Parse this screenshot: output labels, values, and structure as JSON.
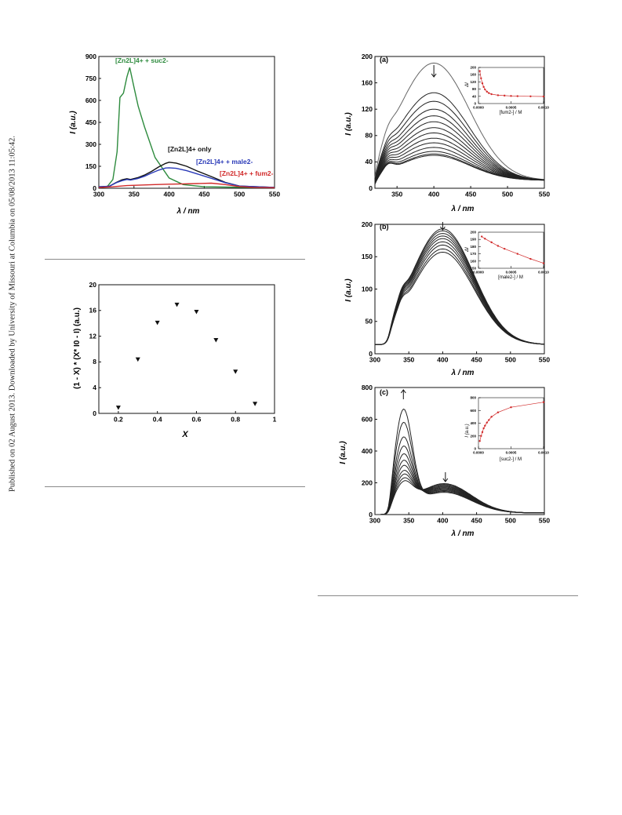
{
  "page": {
    "side_note": "Published on 02 August 2013. Downloaded by University of Missouri at Columbia on 05/08/2013 11:05:42."
  },
  "figures": {
    "fig1": {
      "ylabel": "I (a.u.)",
      "xlabel": "λ / nm",
      "labels": {
        "suc": "[Zn2L]4+ + suc2-",
        "only": "[Zn2L]4+ only",
        "male": "[Zn2L]4+ + male2-",
        "fum": "[Zn2L]4+ + fum2-"
      }
    },
    "fig2": {
      "ylabel": "(1 - X) * (X* I0 - I) (a.u.)",
      "xlabel": "X"
    },
    "panel_a": {
      "label": "(a)",
      "ylabel": "I (a.u.)",
      "xlabel": "λ / nm",
      "inset_ylabel": "ΔI",
      "inset_xlabel": "[fum2-] / M"
    },
    "panel_b": {
      "label": "(b)",
      "ylabel": "I (a.u.)",
      "xlabel": "λ / nm",
      "inset_ylabel": "ΔI",
      "inset_xlabel": "[male2-] / M"
    },
    "panel_c": {
      "label": "(c)",
      "ylabel": "I (a.u.)",
      "xlabel": "λ / nm",
      "inset_ylabel": "I (a.u.)",
      "inset_xlabel": "[suc2-] / M"
    }
  },
  "chart_data": [
    {
      "type": "line",
      "xlabel": "λ / nm",
      "ylabel": "I (a.u.)",
      "xlim": [
        300,
        550
      ],
      "ylim": [
        0,
        900
      ],
      "xticks": [
        300,
        350,
        400,
        450,
        500,
        550
      ],
      "yticks": [
        0,
        150,
        300,
        450,
        600,
        750,
        900
      ],
      "series": [
        {
          "name": "[Zn2L]4+ + suc2-",
          "color": "#2e8b3e",
          "x": [
            300,
            312,
            320,
            326,
            330,
            335,
            340,
            344,
            350,
            356,
            365,
            380,
            400,
            420,
            450,
            480,
            520,
            550
          ],
          "y": [
            8,
            12,
            60,
            250,
            620,
            650,
            760,
            825,
            690,
            560,
            420,
            210,
            70,
            25,
            10,
            8,
            5,
            5
          ]
        },
        {
          "name": "[Zn2L]4+ only",
          "color": "#111111",
          "x": [
            300,
            315,
            325,
            333,
            340,
            345,
            355,
            365,
            375,
            385,
            395,
            400,
            410,
            425,
            440,
            460,
            480,
            500,
            550
          ],
          "y": [
            10,
            14,
            40,
            58,
            65,
            60,
            72,
            90,
            115,
            145,
            170,
            178,
            172,
            150,
            118,
            80,
            40,
            15,
            6
          ]
        },
        {
          "name": "[Zn2L]4+ + male2-",
          "color": "#2a3ab8",
          "x": [
            300,
            315,
            325,
            333,
            340,
            345,
            355,
            365,
            375,
            385,
            395,
            400,
            410,
            425,
            440,
            460,
            480,
            500,
            550
          ],
          "y": [
            10,
            14,
            38,
            52,
            60,
            56,
            66,
            82,
            104,
            124,
            138,
            140,
            136,
            120,
            98,
            68,
            38,
            15,
            6
          ]
        },
        {
          "name": "[Zn2L]4+ + fum2-",
          "color": "#d12a2a",
          "x": [
            300,
            320,
            340,
            360,
            380,
            400,
            420,
            440,
            460,
            480,
            500,
            520,
            550
          ],
          "y": [
            5,
            10,
            18,
            22,
            25,
            28,
            30,
            32,
            35,
            25,
            12,
            6,
            4
          ]
        }
      ]
    },
    {
      "type": "scatter",
      "xlabel": "X",
      "ylabel": "(1 - X) * (X* I0 - I) (a.u.)",
      "xlim": [
        0.1,
        1.0
      ],
      "ylim": [
        0,
        20
      ],
      "xticks": [
        0.2,
        0.4,
        0.6,
        0.8,
        1.0
      ],
      "yticks": [
        0,
        4,
        8,
        12,
        16,
        20
      ],
      "x": [
        0.2,
        0.3,
        0.4,
        0.5,
        0.6,
        0.7,
        0.8,
        0.9
      ],
      "y": [
        0.9,
        8.4,
        14.1,
        16.9,
        15.8,
        11.4,
        6.5,
        1.5
      ]
    },
    {
      "type": "line",
      "label": "(a)",
      "xlabel": "λ / nm",
      "ylabel": "I (a.u.)",
      "xlim": [
        320,
        550
      ],
      "ylim": [
        0,
        200
      ],
      "xticks": [
        350,
        400,
        450,
        500,
        550
      ],
      "yticks": [
        0,
        40,
        80,
        120,
        160,
        200
      ],
      "curve_peaks": [
        178,
        133,
        120,
        108,
        98,
        89,
        80,
        72,
        64,
        57,
        50,
        44,
        40,
        38
      ],
      "inset": {
        "type": "line",
        "xlabel": "[fum2-] / M",
        "ylabel": "ΔI",
        "xlim": [
          0,
          0.001
        ],
        "ylim": [
          0,
          200
        ],
        "xticks": [
          0.0,
          0.0005,
          0.001
        ],
        "xticklabels": [
          "0.0000",
          "0.0005",
          "0.0010"
        ],
        "yticks": [
          0,
          40,
          80,
          120,
          160,
          200
        ],
        "x": [
          2e-05,
          4e-05,
          6e-05,
          8e-05,
          0.0001,
          0.00013,
          0.00016,
          0.0002,
          0.0003,
          0.0004,
          0.0005,
          0.0006,
          0.0008,
          0.001
        ],
        "y": [
          180,
          140,
          112,
          92,
          78,
          66,
          58,
          52,
          46,
          44,
          42,
          41,
          40,
          39
        ]
      }
    },
    {
      "type": "line",
      "label": "(b)",
      "xlabel": "λ / nm",
      "ylabel": "I (a.u.)",
      "xlim": [
        300,
        550
      ],
      "ylim": [
        0,
        200
      ],
      "xticks": [
        300,
        350,
        400,
        450,
        500,
        550
      ],
      "yticks": [
        0,
        50,
        100,
        150,
        200
      ],
      "curve_peaks": [
        193,
        190,
        186,
        182,
        178,
        173,
        168,
        162,
        157
      ],
      "inset": {
        "type": "line",
        "xlabel": "[male2-] / M",
        "ylabel": "ΔI",
        "xlim": [
          0,
          0.001
        ],
        "ylim": [
          150,
          200
        ],
        "xticks": [
          0.0,
          0.0005,
          0.001
        ],
        "xticklabels": [
          "0.0000",
          "0.0005",
          "0.0010"
        ],
        "yticks": [
          150,
          160,
          170,
          180,
          190,
          200
        ],
        "x": [
          5e-05,
          0.0001,
          0.0002,
          0.0003,
          0.0004,
          0.0006,
          0.0008,
          0.001
        ],
        "y": [
          194,
          191,
          186,
          181,
          177,
          170,
          163,
          157
        ]
      }
    },
    {
      "type": "line",
      "label": "(c)",
      "xlabel": "λ / nm",
      "ylabel": "I (a.u.)",
      "xlim": [
        300,
        550
      ],
      "ylim": [
        0,
        800
      ],
      "xticks": [
        300,
        350,
        400,
        450,
        500,
        550
      ],
      "yticks": [
        0,
        200,
        400,
        600,
        800
      ],
      "curve_peaks": [
        720,
        620,
        510,
        440,
        380,
        330,
        290,
        250,
        220,
        190,
        165
      ],
      "inset": {
        "type": "line",
        "xlabel": "[suc2-] / M",
        "ylabel": "I (a.u.)",
        "xlim": [
          0,
          0.001
        ],
        "ylim": [
          0,
          800
        ],
        "xticks": [
          0.0,
          0.0005,
          0.001
        ],
        "xticklabels": [
          "0.0000",
          "0.0005",
          "0.0010"
        ],
        "yticks": [
          0,
          200,
          400,
          600,
          800
        ],
        "x": [
          2e-05,
          4e-05,
          6e-05,
          8e-05,
          0.0001,
          0.00013,
          0.00016,
          0.0002,
          0.0003,
          0.0005,
          0.001
        ],
        "y": [
          120,
          200,
          260,
          320,
          360,
          410,
          450,
          500,
          570,
          650,
          730
        ]
      }
    }
  ]
}
